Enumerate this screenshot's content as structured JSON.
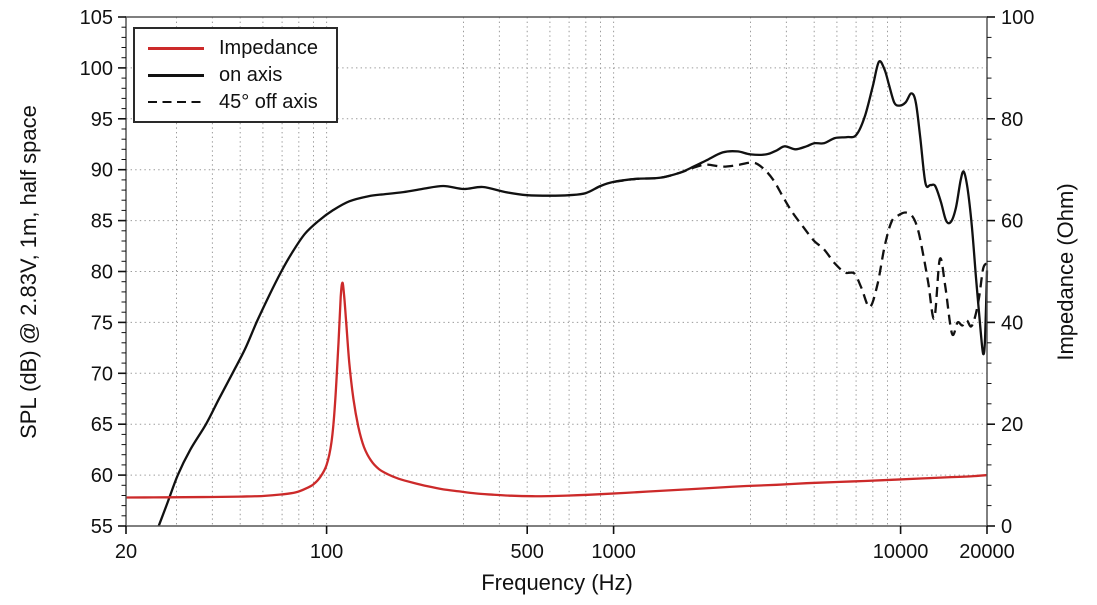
{
  "chart_data": {
    "type": "line",
    "title": "",
    "xlabel": "Frequency (Hz)",
    "ylabel_left": "SPL (dB) @ 2.83V, 1m, half space",
    "ylabel_right": "Impedance (Ohm)",
    "x_scale": "log",
    "x_range": [
      20,
      20000
    ],
    "y_left_range": [
      55,
      105
    ],
    "y_right_range": [
      0,
      100
    ],
    "x_ticks_labeled": [
      20,
      100,
      500,
      1000,
      10000,
      20000
    ],
    "y_left_ticks": [
      55,
      60,
      65,
      70,
      75,
      80,
      85,
      90,
      95,
      100,
      105
    ],
    "y_right_ticks": [
      0,
      20,
      40,
      60,
      80,
      100
    ],
    "grid": "dotted",
    "grid_color": "#9a9a9a",
    "frame_color": "#555555",
    "legend_position": "top-left",
    "series": [
      {
        "name": "Impedance",
        "axis": "right",
        "unit": "Ohm",
        "color": "#cc2a2a",
        "style": "solid",
        "points": [
          [
            20,
            5.6
          ],
          [
            25,
            5.62
          ],
          [
            32,
            5.66
          ],
          [
            40,
            5.7
          ],
          [
            50,
            5.78
          ],
          [
            60,
            5.9
          ],
          [
            70,
            6.2
          ],
          [
            78,
            6.6
          ],
          [
            85,
            7.4
          ],
          [
            90,
            8.2
          ],
          [
            95,
            9.6
          ],
          [
            100,
            12.0
          ],
          [
            104,
            16.5
          ],
          [
            107,
            24
          ],
          [
            110,
            36
          ],
          [
            112,
            45
          ],
          [
            113.5,
            47.8
          ],
          [
            115,
            45.5
          ],
          [
            117,
            40
          ],
          [
            120,
            32
          ],
          [
            124,
            25
          ],
          [
            129,
            19.5
          ],
          [
            135,
            15.5
          ],
          [
            143,
            12.8
          ],
          [
            152,
            11.2
          ],
          [
            163,
            10.2
          ],
          [
            178,
            9.3
          ],
          [
            200,
            8.5
          ],
          [
            225,
            7.8
          ],
          [
            255,
            7.2
          ],
          [
            290,
            6.8
          ],
          [
            330,
            6.4
          ],
          [
            380,
            6.15
          ],
          [
            440,
            5.95
          ],
          [
            520,
            5.85
          ],
          [
            620,
            5.9
          ],
          [
            750,
            6.05
          ],
          [
            900,
            6.25
          ],
          [
            1100,
            6.5
          ],
          [
            1400,
            6.85
          ],
          [
            1800,
            7.2
          ],
          [
            2300,
            7.55
          ],
          [
            2900,
            7.85
          ],
          [
            3700,
            8.1
          ],
          [
            4700,
            8.4
          ],
          [
            6000,
            8.65
          ],
          [
            7500,
            8.85
          ],
          [
            9500,
            9.1
          ],
          [
            12000,
            9.35
          ],
          [
            15000,
            9.6
          ],
          [
            18000,
            9.8
          ],
          [
            20000,
            10.0
          ]
        ]
      },
      {
        "name": "on axis",
        "axis": "left",
        "unit": "dB",
        "color": "#111111",
        "style": "solid",
        "points": [
          [
            26,
            55
          ],
          [
            28,
            57.4
          ],
          [
            30.3,
            60
          ],
          [
            33.5,
            62.5
          ],
          [
            38,
            65
          ],
          [
            42,
            67.4
          ],
          [
            47,
            70
          ],
          [
            52,
            72.4
          ],
          [
            57,
            75
          ],
          [
            63,
            77.6
          ],
          [
            69.5,
            80
          ],
          [
            76,
            81.9
          ],
          [
            84,
            83.7
          ],
          [
            94,
            85
          ],
          [
            105,
            86.0
          ],
          [
            120,
            86.9
          ],
          [
            140,
            87.4
          ],
          [
            160,
            87.6
          ],
          [
            185,
            87.8
          ],
          [
            215,
            88.1
          ],
          [
            255,
            88.4
          ],
          [
            300,
            88.1
          ],
          [
            350,
            88.3
          ],
          [
            420,
            87.8
          ],
          [
            500,
            87.5
          ],
          [
            600,
            87.45
          ],
          [
            700,
            87.5
          ],
          [
            800,
            87.7
          ],
          [
            900,
            88.4
          ],
          [
            1000,
            88.8
          ],
          [
            1200,
            89.1
          ],
          [
            1450,
            89.2
          ],
          [
            1700,
            89.7
          ],
          [
            1900,
            90.3
          ],
          [
            2100,
            90.9
          ],
          [
            2400,
            91.7
          ],
          [
            2700,
            91.8
          ],
          [
            3000,
            91.5
          ],
          [
            3400,
            91.5
          ],
          [
            3700,
            91.9
          ],
          [
            3950,
            92.3
          ],
          [
            4300,
            92.0
          ],
          [
            4700,
            92.3
          ],
          [
            5000,
            92.6
          ],
          [
            5400,
            92.6
          ],
          [
            5900,
            93.1
          ],
          [
            6500,
            93.2
          ],
          [
            7000,
            93.4
          ],
          [
            7500,
            95.2
          ],
          [
            8000,
            98.2
          ],
          [
            8400,
            100.6
          ],
          [
            8800,
            99.8
          ],
          [
            9100,
            98.4
          ],
          [
            9500,
            96.6
          ],
          [
            9900,
            96.3
          ],
          [
            10400,
            96.6
          ],
          [
            10900,
            97.5
          ],
          [
            11300,
            96.6
          ],
          [
            11700,
            93.2
          ],
          [
            12200,
            88.7
          ],
          [
            12700,
            88.5
          ],
          [
            13200,
            88.4
          ],
          [
            13800,
            86.9
          ],
          [
            14400,
            85.0
          ],
          [
            15000,
            84.9
          ],
          [
            15600,
            86.3
          ],
          [
            16200,
            89.0
          ],
          [
            16600,
            89.8
          ],
          [
            17100,
            88.2
          ],
          [
            17700,
            84.5
          ],
          [
            18300,
            79.5
          ],
          [
            19000,
            74.2
          ],
          [
            19400,
            71.9
          ],
          [
            19700,
            73.5
          ],
          [
            20000,
            80.1
          ]
        ]
      },
      {
        "name": "45° off axis",
        "axis": "left",
        "unit": "dB",
        "color": "#111111",
        "style": "dashed",
        "points": [
          [
            1000,
            88.8
          ],
          [
            1200,
            89.1
          ],
          [
            1450,
            89.2
          ],
          [
            1700,
            89.7
          ],
          [
            1900,
            90.2
          ],
          [
            2100,
            90.5
          ],
          [
            2400,
            90.3
          ],
          [
            2700,
            90.45
          ],
          [
            3050,
            90.7
          ],
          [
            3300,
            90.2
          ],
          [
            3600,
            89.0
          ],
          [
            3900,
            87.3
          ],
          [
            4200,
            85.8
          ],
          [
            4600,
            84.3
          ],
          [
            5000,
            83.0
          ],
          [
            5400,
            82.2
          ],
          [
            5900,
            80.8
          ],
          [
            6400,
            79.9
          ],
          [
            6900,
            79.8
          ],
          [
            7300,
            78.4
          ],
          [
            7800,
            76.5
          ],
          [
            8300,
            78.7
          ],
          [
            8800,
            82.5
          ],
          [
            9300,
            84.9
          ],
          [
            9800,
            85.5
          ],
          [
            10400,
            85.8
          ],
          [
            11000,
            85.4
          ],
          [
            11500,
            84.1
          ],
          [
            12000,
            81.6
          ],
          [
            12500,
            78.8
          ],
          [
            13100,
            75.4
          ],
          [
            13700,
            81.2
          ],
          [
            14300,
            78.6
          ],
          [
            15100,
            73.9
          ],
          [
            15800,
            75.0
          ],
          [
            16400,
            74.7
          ],
          [
            17000,
            75.2
          ],
          [
            17600,
            74.6
          ],
          [
            18200,
            75.6
          ],
          [
            18800,
            77.6
          ],
          [
            19400,
            80.3
          ],
          [
            20000,
            80.8
          ]
        ]
      }
    ]
  }
}
